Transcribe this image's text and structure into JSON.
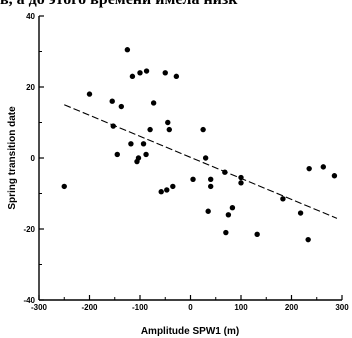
{
  "header_text": "в, а до этого времени имела низк",
  "chart_data": {
    "type": "scatter",
    "title": "",
    "xlabel": "Amplitude SPW1 (m)",
    "ylabel": "Spring transition date",
    "xlim": [
      -300,
      300
    ],
    "ylim": [
      -40,
      40
    ],
    "xticks": [
      -300,
      -200,
      -100,
      0,
      100,
      200,
      300
    ],
    "yticks": [
      -40,
      -20,
      0,
      20,
      40
    ],
    "grid": false,
    "points": [
      {
        "x": -250,
        "y": -8
      },
      {
        "x": -200,
        "y": 18
      },
      {
        "x": -155,
        "y": 16
      },
      {
        "x": -153,
        "y": 9
      },
      {
        "x": -145,
        "y": 1
      },
      {
        "x": -137,
        "y": 14.5
      },
      {
        "x": -125,
        "y": 30.5
      },
      {
        "x": -118,
        "y": 4
      },
      {
        "x": -115,
        "y": 23
      },
      {
        "x": -106,
        "y": -1
      },
      {
        "x": -103,
        "y": 0
      },
      {
        "x": -100,
        "y": 24
      },
      {
        "x": -93,
        "y": 4
      },
      {
        "x": -88,
        "y": 1
      },
      {
        "x": -87,
        "y": 24.5
      },
      {
        "x": -80,
        "y": 8
      },
      {
        "x": -73,
        "y": 15.5
      },
      {
        "x": -58,
        "y": -9.5
      },
      {
        "x": -50,
        "y": 24
      },
      {
        "x": -47,
        "y": -9
      },
      {
        "x": -45,
        "y": 10
      },
      {
        "x": -42,
        "y": 8
      },
      {
        "x": -35,
        "y": -8
      },
      {
        "x": -28,
        "y": 23
      },
      {
        "x": 5,
        "y": -6
      },
      {
        "x": 25,
        "y": 8
      },
      {
        "x": 30,
        "y": 0
      },
      {
        "x": 35,
        "y": -15
      },
      {
        "x": 40,
        "y": -8
      },
      {
        "x": 40,
        "y": -6
      },
      {
        "x": 68,
        "y": -4
      },
      {
        "x": 70,
        "y": -21
      },
      {
        "x": 75,
        "y": -16
      },
      {
        "x": 83,
        "y": -14
      },
      {
        "x": 100,
        "y": -7
      },
      {
        "x": 100,
        "y": -5.5
      },
      {
        "x": 132,
        "y": -21.5
      },
      {
        "x": 183,
        "y": -11.5
      },
      {
        "x": 218,
        "y": -15.5
      },
      {
        "x": 233,
        "y": -23
      },
      {
        "x": 235,
        "y": -3
      },
      {
        "x": 263,
        "y": -2.5
      },
      {
        "x": 285,
        "y": -5
      }
    ],
    "trendline": {
      "x": [
        -250,
        290
      ],
      "y": [
        15,
        -17
      ]
    }
  }
}
